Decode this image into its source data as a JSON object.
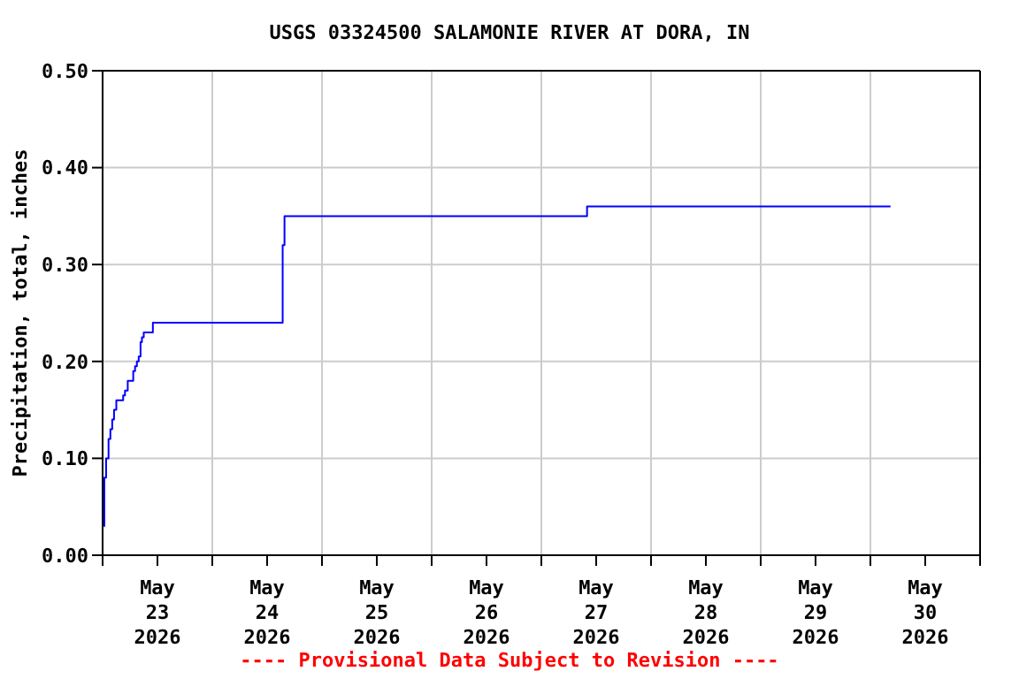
{
  "chart_data": {
    "type": "step",
    "title": "USGS 03324500 SALAMONIE RIVER AT DORA, IN",
    "ylabel": "Precipitation, total, inches",
    "x": [
      "2026-05-23T00:15",
      "2026-05-23T00:23",
      "2026-05-23T00:46",
      "2026-05-23T01:18",
      "2026-05-23T01:42",
      "2026-05-23T02:06",
      "2026-05-23T02:30",
      "2026-05-23T03:00",
      "2026-05-23T04:30",
      "2026-05-23T04:54",
      "2026-05-23T05:30",
      "2026-05-23T06:42",
      "2026-05-23T07:06",
      "2026-05-23T07:30",
      "2026-05-23T07:54",
      "2026-05-23T08:18",
      "2026-05-23T08:36",
      "2026-05-23T09:00",
      "2026-05-23T11:00",
      "2026-05-24T15:24",
      "2026-05-24T15:48",
      "2026-05-27T10:00",
      "2026-05-30T04:24"
    ],
    "series": [
      {
        "color": "#0000ff",
        "values": [
          0.03,
          0.08,
          0.1,
          0.12,
          0.13,
          0.14,
          0.15,
          0.16,
          0.165,
          0.17,
          0.18,
          0.19,
          0.195,
          0.2,
          0.205,
          0.22,
          0.225,
          0.23,
          0.24,
          0.32,
          0.35,
          0.36,
          0.36
        ]
      }
    ],
    "xlim": [
      "2026-05-23T00:00",
      "2026-05-31T00:00"
    ],
    "xticks": [
      {
        "value": "2026-05-23T00:00",
        "label": null
      },
      {
        "value": "2026-05-23T12:00",
        "label": "May\n23\n2026"
      },
      {
        "value": "2026-05-24T00:00",
        "label": null
      },
      {
        "value": "2026-05-24T12:00",
        "label": "May\n24\n2026"
      },
      {
        "value": "2026-05-25T00:00",
        "label": null
      },
      {
        "value": "2026-05-25T12:00",
        "label": "May\n25\n2026"
      },
      {
        "value": "2026-05-26T00:00",
        "label": null
      },
      {
        "value": "2026-05-26T12:00",
        "label": "May\n26\n2026"
      },
      {
        "value": "2026-05-27T00:00",
        "label": null
      },
      {
        "value": "2026-05-27T12:00",
        "label": "May\n27\n2026"
      },
      {
        "value": "2026-05-28T00:00",
        "label": null
      },
      {
        "value": "2026-05-28T12:00",
        "label": "May\n28\n2026"
      },
      {
        "value": "2026-05-29T00:00",
        "label": null
      },
      {
        "value": "2026-05-29T12:00",
        "label": "May\n29\n2026"
      },
      {
        "value": "2026-05-30T00:00",
        "label": null
      },
      {
        "value": "2026-05-30T12:00",
        "label": "May\n30\n2026"
      },
      {
        "value": "2026-05-31T00:00",
        "label": null
      }
    ],
    "ylim": [
      0,
      0.5
    ],
    "yticks": [
      {
        "value": 0,
        "label": "0.00"
      },
      {
        "value": 0.1,
        "label": "0.10"
      },
      {
        "value": 0.2,
        "label": "0.20"
      },
      {
        "value": 0.3,
        "label": "0.30"
      },
      {
        "value": 0.4,
        "label": "0.40"
      },
      {
        "value": 0.5,
        "label": "0.50"
      }
    ],
    "grid": true,
    "annotations": [
      "---- Provisional Data Subject to Revision ----"
    ]
  }
}
